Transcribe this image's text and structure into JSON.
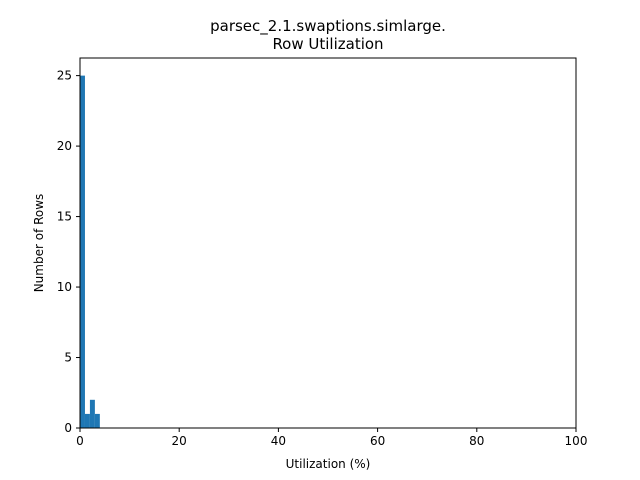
{
  "chart_data": {
    "type": "bar",
    "title_lines": [
      "parsec_2.1.swaptions.simlarge.",
      "Row Utilization"
    ],
    "xlabel": "Utilization (%)",
    "ylabel": "Number of Rows",
    "xlim": [
      0,
      100
    ],
    "ylim": [
      0,
      26.25
    ],
    "xticks": [
      0,
      20,
      40,
      60,
      80,
      100
    ],
    "yticks": [
      0,
      5,
      10,
      15,
      20,
      25
    ],
    "grid": false,
    "bar_color": "#1f77b4",
    "bins": [
      {
        "x0": 0,
        "x1": 1,
        "count": 25
      },
      {
        "x0": 1,
        "x1": 2,
        "count": 1
      },
      {
        "x0": 2,
        "x1": 3,
        "count": 2
      },
      {
        "x0": 3,
        "x1": 4,
        "count": 1
      }
    ]
  }
}
